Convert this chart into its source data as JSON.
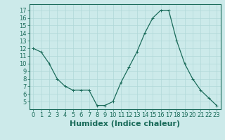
{
  "x": [
    0,
    1,
    2,
    3,
    4,
    5,
    6,
    7,
    8,
    9,
    10,
    11,
    12,
    13,
    14,
    15,
    16,
    17,
    18,
    19,
    20,
    21,
    22,
    23
  ],
  "y": [
    12,
    11.5,
    10,
    8,
    7,
    6.5,
    6.5,
    6.5,
    4.5,
    4.5,
    5,
    7.5,
    9.5,
    11.5,
    14,
    16,
    17,
    17,
    13,
    10,
    8,
    6.5,
    5.5,
    4.5
  ],
  "line_color": "#1a6b5a",
  "marker": "+",
  "marker_size": 3,
  "background_color": "#cceaea",
  "grid_color": "#b0d8d8",
  "xlabel": "Humidex (Indice chaleur)",
  "xlim": [
    -0.5,
    23.5
  ],
  "ylim": [
    4.0,
    17.8
  ],
  "yticks": [
    5,
    6,
    7,
    8,
    9,
    10,
    11,
    12,
    13,
    14,
    15,
    16,
    17
  ],
  "xtick_labels": [
    "0",
    "1",
    "2",
    "3",
    "4",
    "5",
    "6",
    "7",
    "8",
    "9",
    "10",
    "11",
    "12",
    "13",
    "14",
    "15",
    "16",
    "17",
    "18",
    "19",
    "20",
    "21",
    "22",
    "23"
  ],
  "xlabel_fontsize": 8,
  "tick_fontsize": 6,
  "linewidth": 0.9,
  "markeredgewidth": 0.7
}
